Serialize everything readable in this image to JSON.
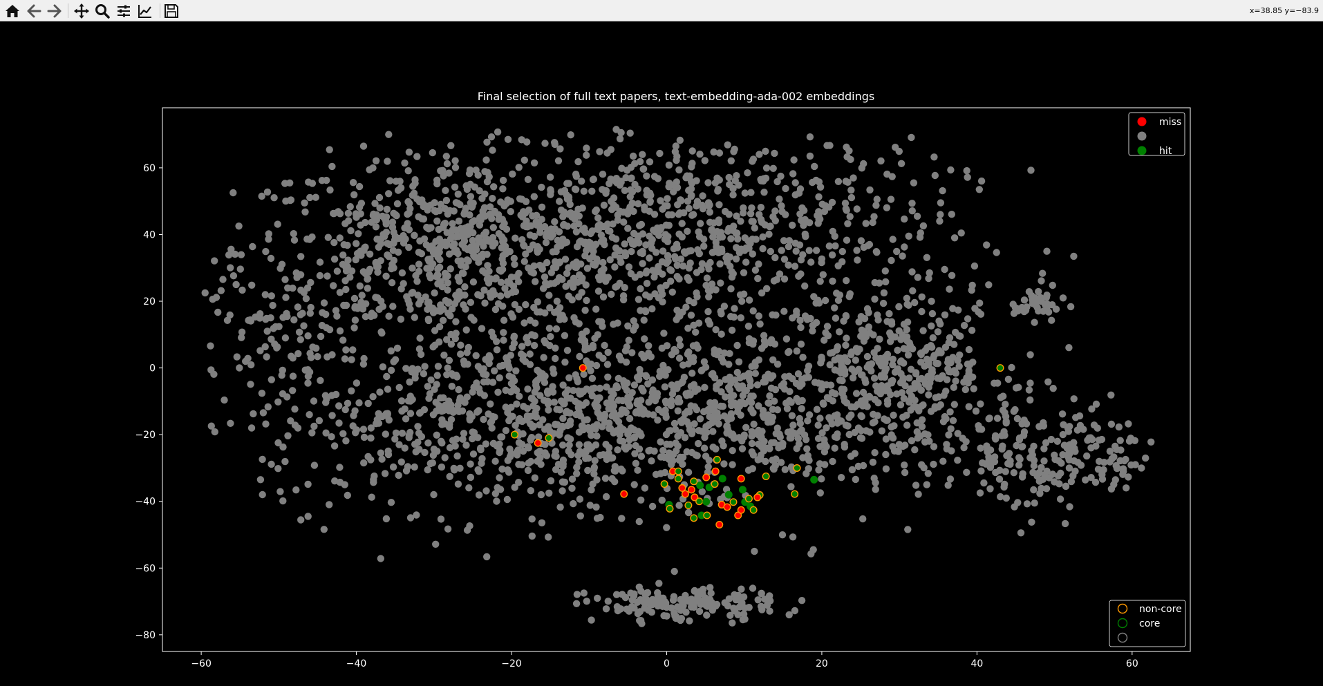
{
  "toolbar": {
    "buttons": [
      {
        "name": "home-button",
        "icon": "home-icon"
      },
      {
        "name": "back-button",
        "icon": "arrow-left-icon"
      },
      {
        "name": "forward-button",
        "icon": "arrow-right-icon"
      },
      {
        "name": "pan-button",
        "icon": "move-icon"
      },
      {
        "name": "zoom-button",
        "icon": "magnifier-icon"
      },
      {
        "name": "configure-subplots-button",
        "icon": "sliders-icon"
      },
      {
        "name": "edit-axis-button",
        "icon": "line-chart-icon"
      },
      {
        "name": "save-button",
        "icon": "floppy-disk-icon"
      }
    ],
    "coords_text": "x=38.85 y=−83.9"
  },
  "chart_data": {
    "type": "scatter",
    "title": "Final selection of full text papers, text-embedding-ada-002 embeddings",
    "xlabel": "",
    "ylabel": "",
    "xlim": [
      -65,
      67.5
    ],
    "ylim": [
      -85,
      78
    ],
    "xticks": [
      -60,
      -40,
      -20,
      0,
      20,
      40,
      60
    ],
    "yticks": [
      -80,
      -60,
      -40,
      -20,
      0,
      20,
      40,
      60
    ],
    "xtick_labels": [
      "−60",
      "−40",
      "−20",
      "0",
      "20",
      "40",
      "60"
    ],
    "ytick_labels": [
      "−80",
      "−60",
      "−40",
      "−20",
      "0",
      "20",
      "40",
      "60"
    ],
    "grid": false,
    "background": "#000000",
    "colors": {
      "miss": "#ff0000",
      "background_points": "#808080",
      "hit": "#008000",
      "non_core_edge": "#ff9900",
      "core_edge": "#008000",
      "other_edge": "#808080"
    },
    "legend_fill": {
      "placement": "upper right",
      "entries": [
        {
          "label": "miss",
          "color": "#ff0000"
        },
        {
          "label": "",
          "color": "#808080"
        },
        {
          "label": "hit",
          "color": "#008000"
        }
      ]
    },
    "legend_edge": {
      "placement": "lower right",
      "entries": [
        {
          "label": "non-core",
          "color": "#ff9900"
        },
        {
          "label": "core",
          "color": "#008000"
        },
        {
          "label": "",
          "color": "#808080"
        }
      ]
    },
    "background_clusters": [
      {
        "cx": -27,
        "cy": 35,
        "sx": 14,
        "sy": 14,
        "n": 780
      },
      {
        "cx": 5,
        "cy": 40,
        "sx": 16,
        "sy": 16,
        "n": 720
      },
      {
        "cx": -20,
        "cy": -15,
        "sx": 16,
        "sy": 14,
        "n": 760
      },
      {
        "cx": 10,
        "cy": -12,
        "sx": 14,
        "sy": 14,
        "n": 620
      },
      {
        "cx": 31,
        "cy": 0,
        "sx": 7,
        "sy": 10,
        "n": 280
      },
      {
        "cx": 49,
        "cy": -27,
        "sx": 8,
        "sy": 8,
        "n": 230
      },
      {
        "cx": 48,
        "cy": 19,
        "sx": 1.6,
        "sy": 2.6,
        "n": 35
      },
      {
        "cx": 2,
        "cy": -71,
        "sx": 6,
        "sy": 2.6,
        "n": 150
      },
      {
        "cx": -50,
        "cy": 8,
        "sx": 4,
        "sy": 9,
        "n": 60
      }
    ],
    "background_outliers": [
      {
        "x": -59.5,
        "y": 22.5
      },
      {
        "x": 61.2,
        "y": -30
      },
      {
        "x": -53.5,
        "y": -18
      },
      {
        "x": -41.5,
        "y": -35
      },
      {
        "x": -6.5,
        "y": 71.5
      },
      {
        "x": 1,
        "y": -61
      }
    ],
    "highlighted": [
      {
        "x": -10.8,
        "y": 0,
        "fill": "miss",
        "edge": "non-core"
      },
      {
        "x": -16.6,
        "y": -22.5,
        "fill": "miss",
        "edge": "non-core"
      },
      {
        "x": -19.6,
        "y": -20,
        "fill": "hit",
        "edge": "non-core"
      },
      {
        "x": -15.2,
        "y": -21,
        "fill": "hit",
        "edge": "non-core"
      },
      {
        "x": -5.5,
        "y": -37.8,
        "fill": "miss",
        "edge": "non-core"
      },
      {
        "x": 43,
        "y": 0,
        "fill": "hit",
        "edge": "non-core"
      },
      {
        "x": 16.8,
        "y": -30,
        "fill": "hit",
        "edge": "non-core"
      },
      {
        "x": 19,
        "y": -33.5,
        "fill": "hit",
        "edge": "core"
      },
      {
        "x": 16.5,
        "y": -37.8,
        "fill": "hit",
        "edge": "non-core"
      },
      {
        "x": 12.8,
        "y": -32.5,
        "fill": "hit",
        "edge": "non-core"
      },
      {
        "x": 0.8,
        "y": -31,
        "fill": "miss",
        "edge": "non-core"
      },
      {
        "x": 1.5,
        "y": -33.2,
        "fill": "hit",
        "edge": "non-core"
      },
      {
        "x": 2.4,
        "y": -37.8,
        "fill": "miss",
        "edge": "non-core"
      },
      {
        "x": 3.2,
        "y": -36.5,
        "fill": "miss",
        "edge": "non-core"
      },
      {
        "x": 3.6,
        "y": -38.8,
        "fill": "miss",
        "edge": "non-core"
      },
      {
        "x": 4.3,
        "y": -35.2,
        "fill": "hit",
        "edge": "core"
      },
      {
        "x": 5.1,
        "y": -32.8,
        "fill": "miss",
        "edge": "non-core"
      },
      {
        "x": 5.5,
        "y": -35.8,
        "fill": "hit",
        "edge": "core"
      },
      {
        "x": 6.2,
        "y": -34.8,
        "fill": "hit",
        "edge": "non-core"
      },
      {
        "x": 6.3,
        "y": -31,
        "fill": "miss",
        "edge": "non-core"
      },
      {
        "x": 7.2,
        "y": -33.2,
        "fill": "hit",
        "edge": "core"
      },
      {
        "x": 4.2,
        "y": -40,
        "fill": "hit",
        "edge": "non-core"
      },
      {
        "x": 5.1,
        "y": -40.1,
        "fill": "hit",
        "edge": "core"
      },
      {
        "x": 2.8,
        "y": -41.2,
        "fill": "hit",
        "edge": "non-core"
      },
      {
        "x": 0.3,
        "y": -41,
        "fill": "hit",
        "edge": "core"
      },
      {
        "x": 0.4,
        "y": -42.2,
        "fill": "hit",
        "edge": "non-core"
      },
      {
        "x": 3.5,
        "y": -45,
        "fill": "hit",
        "edge": "non-core"
      },
      {
        "x": 4.5,
        "y": -44.2,
        "fill": "hit",
        "edge": "core"
      },
      {
        "x": 5.2,
        "y": -44.2,
        "fill": "hit",
        "edge": "non-core"
      },
      {
        "x": 6.8,
        "y": -47,
        "fill": "miss",
        "edge": "non-core"
      },
      {
        "x": 7.1,
        "y": -41,
        "fill": "miss",
        "edge": "non-core"
      },
      {
        "x": 7.8,
        "y": -41.7,
        "fill": "miss",
        "edge": "non-core"
      },
      {
        "x": 8.6,
        "y": -40.2,
        "fill": "hit",
        "edge": "non-core"
      },
      {
        "x": 9.2,
        "y": -44.2,
        "fill": "miss",
        "edge": "non-core"
      },
      {
        "x": 9.6,
        "y": -42.6,
        "fill": "miss",
        "edge": "non-core"
      },
      {
        "x": 10.1,
        "y": -40.2,
        "fill": "hit",
        "edge": "core"
      },
      {
        "x": 10.6,
        "y": -39.2,
        "fill": "hit",
        "edge": "non-core"
      },
      {
        "x": 10.8,
        "y": -41.5,
        "fill": "hit",
        "edge": "core"
      },
      {
        "x": 11.2,
        "y": -42.6,
        "fill": "hit",
        "edge": "non-core"
      },
      {
        "x": 9.8,
        "y": -36.5,
        "fill": "hit",
        "edge": "core"
      },
      {
        "x": 9.6,
        "y": -33.2,
        "fill": "miss",
        "edge": "non-core"
      },
      {
        "x": 12,
        "y": -38.1,
        "fill": "hit",
        "edge": "non-core"
      },
      {
        "x": 11.7,
        "y": -38.8,
        "fill": "miss",
        "edge": "non-core"
      },
      {
        "x": -0.3,
        "y": -34.8,
        "fill": "hit",
        "edge": "non-core"
      },
      {
        "x": 1.5,
        "y": -31,
        "fill": "hit",
        "edge": "non-core"
      },
      {
        "x": 3.5,
        "y": -34,
        "fill": "hit",
        "edge": "non-core"
      },
      {
        "x": 8,
        "y": -38,
        "fill": "hit",
        "edge": "core"
      },
      {
        "x": 6.5,
        "y": -27.5,
        "fill": "hit",
        "edge": "non-core"
      },
      {
        "x": 2,
        "y": -36,
        "fill": "miss",
        "edge": "non-core"
      }
    ]
  }
}
